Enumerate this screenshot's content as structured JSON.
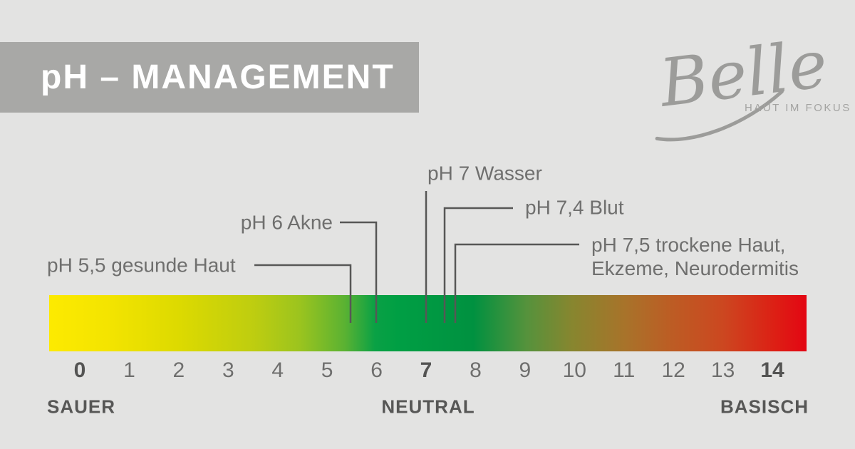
{
  "header": {
    "title": "pH – MANAGEMENT",
    "banner_color": "#a8a8a6",
    "title_color": "#ffffff"
  },
  "logo": {
    "brand": "Belle",
    "tagline": "HAUT IM FOKUS",
    "color": "#9c9c9a"
  },
  "annotations": [
    {
      "ph": "5,5",
      "label": "pH 5,5 gesunde Haut"
    },
    {
      "ph": "6",
      "label": "pH 6 Akne"
    },
    {
      "ph": "7",
      "label": "pH 7 Wasser"
    },
    {
      "ph": "7,4",
      "label": "pH 7,4 Blut"
    },
    {
      "ph": "7,5",
      "label": "pH 7,5 trockene Haut,\nEkzeme, Neurodermitis"
    }
  ],
  "scale": {
    "min": 0,
    "max": 14,
    "ticks": [
      {
        "label": "0",
        "bold": true
      },
      {
        "label": "1",
        "bold": false
      },
      {
        "label": "2",
        "bold": false
      },
      {
        "label": "3",
        "bold": false
      },
      {
        "label": "4",
        "bold": false
      },
      {
        "label": "5",
        "bold": false
      },
      {
        "label": "6",
        "bold": false
      },
      {
        "label": "7",
        "bold": true
      },
      {
        "label": "8",
        "bold": false
      },
      {
        "label": "9",
        "bold": false
      },
      {
        "label": "10",
        "bold": false
      },
      {
        "label": "11",
        "bold": false
      },
      {
        "label": "12",
        "bold": false
      },
      {
        "label": "13",
        "bold": false
      },
      {
        "label": "14",
        "bold": true
      }
    ],
    "zones": [
      {
        "label": "SAUER"
      },
      {
        "label": "NEUTRAL"
      },
      {
        "label": "BASISCH"
      }
    ],
    "gradient_stops": [
      "#fdea00 0%",
      "#f3e400 8%",
      "#ddda00 17%",
      "#becd10 27%",
      "#9cc41e 33%",
      "#5bb232 39%",
      "#0aa145 43%",
      "#009f44 46%",
      "#009140 56%",
      "#55923c 63%",
      "#87862f 69%",
      "#a8732a 76%",
      "#bc5d24 82%",
      "#cc4720 89%",
      "#dd1e14 96%",
      "#e30613 100%"
    ],
    "line_color": "#575756"
  }
}
